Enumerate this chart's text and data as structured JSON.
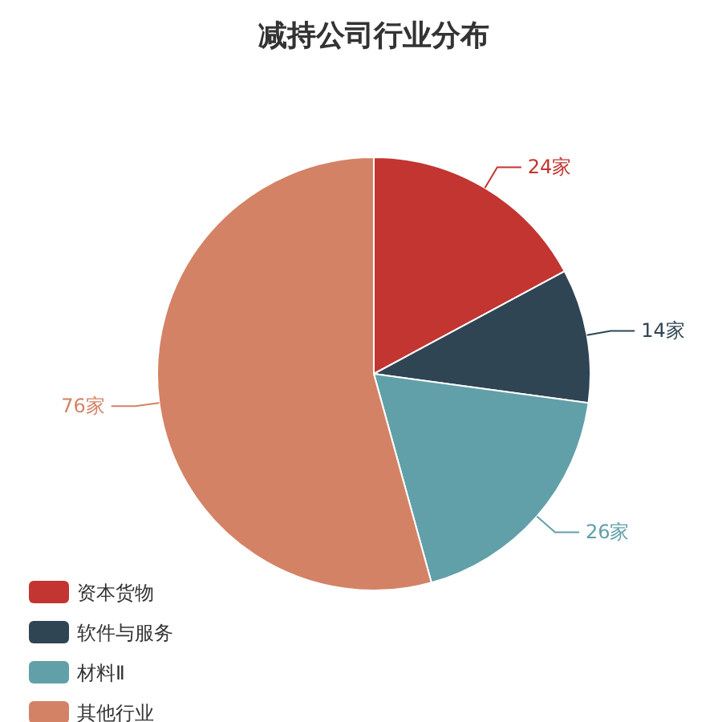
{
  "chart_data": {
    "type": "pie",
    "title": "减持公司行业分布",
    "categories": [
      "资本货物",
      "软件与服务",
      "材料Ⅱ",
      "其他行业"
    ],
    "values": [
      24,
      14,
      26,
      76
    ],
    "value_labels": [
      "24家",
      "14家",
      "26家",
      "76家"
    ],
    "colors": [
      "#c23531",
      "#2f4554",
      "#61a0a8",
      "#d48265"
    ],
    "legend": "bottom left"
  }
}
